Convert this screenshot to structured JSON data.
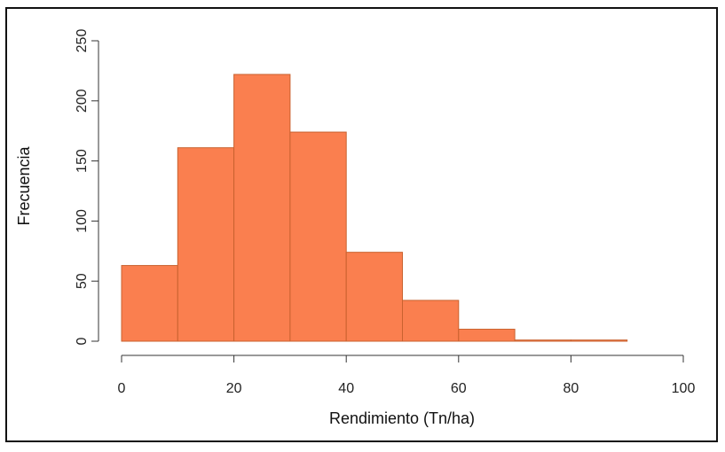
{
  "chart_data": {
    "type": "bar",
    "title": "",
    "xlabel": "Rendimiento (Tn/ha)",
    "ylabel": "Frecuencia",
    "bins": [
      [
        0,
        10
      ],
      [
        10,
        20
      ],
      [
        20,
        30
      ],
      [
        30,
        40
      ],
      [
        40,
        50
      ],
      [
        50,
        60
      ],
      [
        60,
        70
      ],
      [
        70,
        80
      ],
      [
        80,
        90
      ]
    ],
    "values": [
      63,
      161,
      222,
      174,
      74,
      34,
      10,
      1,
      1
    ],
    "xlim": [
      0,
      100
    ],
    "ylim": [
      0,
      250
    ],
    "xticks": [
      0,
      20,
      40,
      60,
      80,
      100
    ],
    "yticks": [
      0,
      50,
      100,
      150,
      200,
      250
    ],
    "grid": false,
    "colors": {
      "bar_fill": "#fa7f4f",
      "bar_edge": "#c9622f",
      "axis": "#333333"
    }
  }
}
